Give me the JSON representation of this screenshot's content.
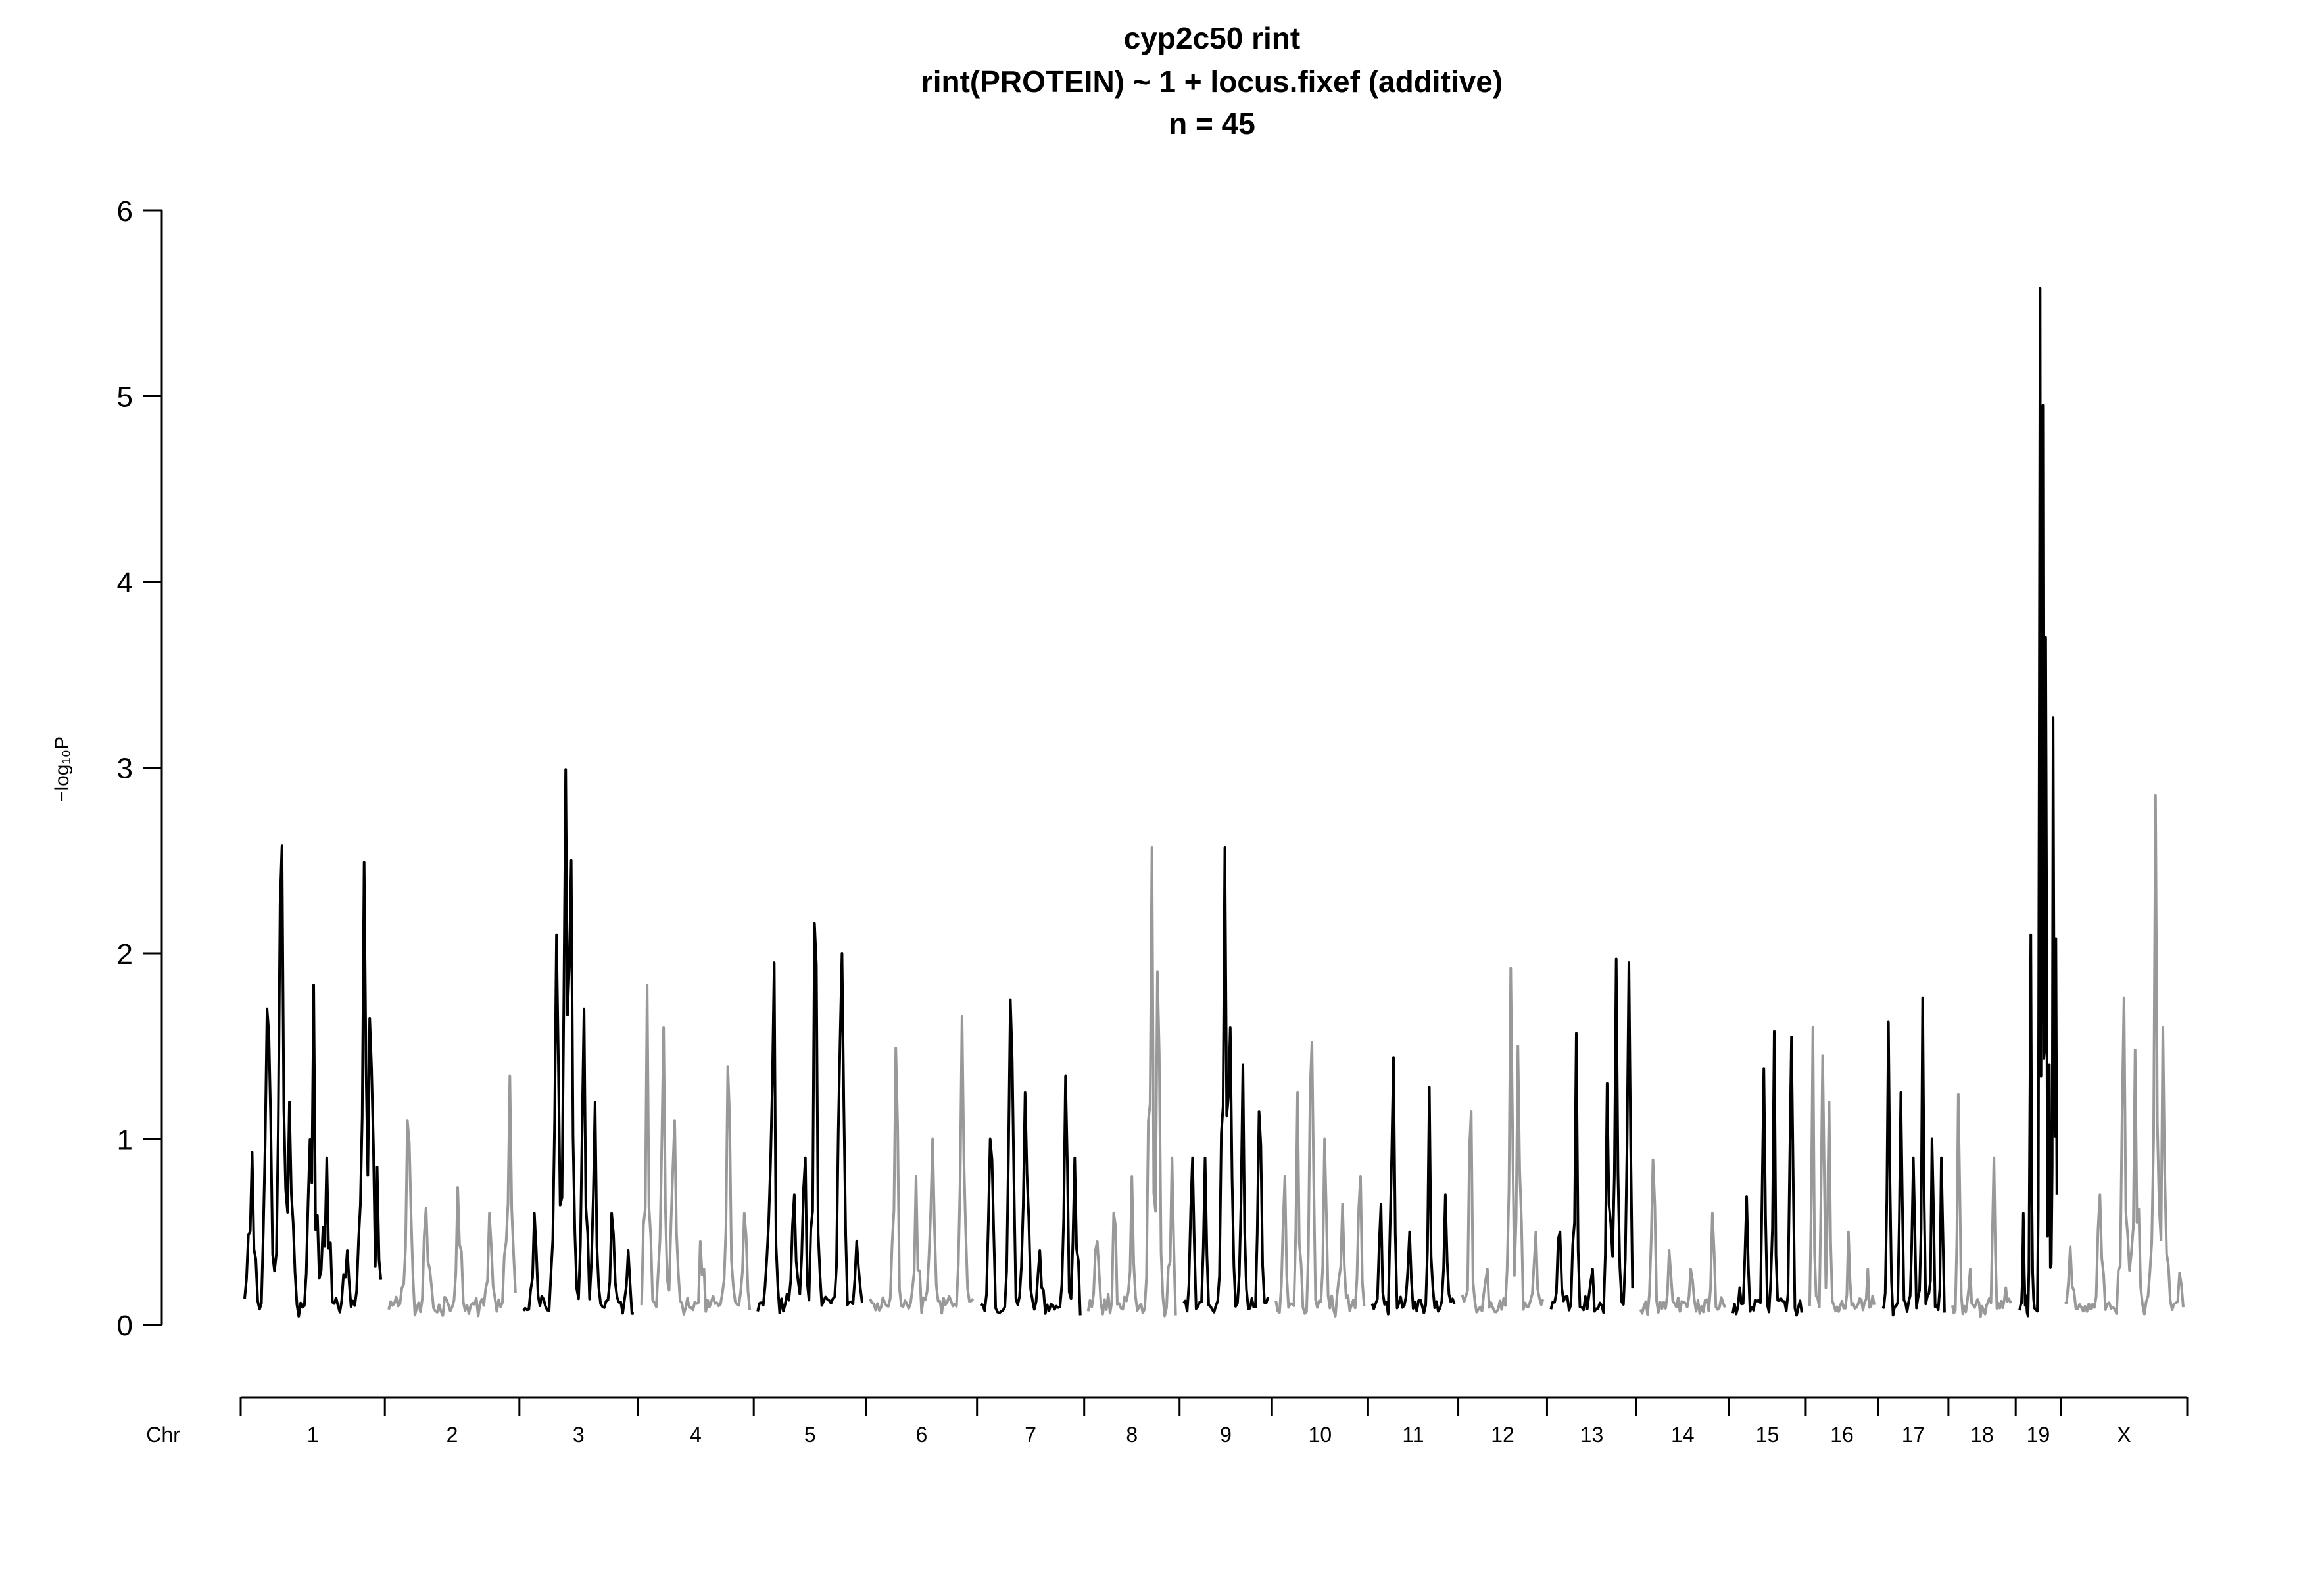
{
  "chart_data": {
    "type": "line",
    "title": "cyp2c50 rint",
    "subtitle": "rint(PROTEIN) ~ 1 + locus.fixef (additive)",
    "sample_label": "n = 45",
    "ylabel": "−log₁₀P",
    "xlabel": "Chr",
    "ylim": [
      0,
      6
    ],
    "yticks": [
      0,
      1,
      2,
      3,
      4,
      5,
      6
    ],
    "grid": false,
    "colors": {
      "odd": "#000000",
      "even": "#999999"
    },
    "chromosomes": [
      {
        "name": "1",
        "length": 195,
        "color": "black",
        "peaks": [
          [
            0.05,
            0.93
          ],
          [
            0.17,
            1.7
          ],
          [
            0.27,
            2.58
          ],
          [
            0.33,
            1.2
          ],
          [
            0.5,
            1.83
          ],
          [
            0.6,
            0.9
          ],
          [
            0.75,
            0.4
          ],
          [
            0.88,
            2.49
          ],
          [
            0.92,
            1.65
          ],
          [
            0.97,
            0.85
          ]
        ]
      },
      {
        "name": "2",
        "length": 182,
        "color": "gray",
        "peaks": [
          [
            0.15,
            1.1
          ],
          [
            0.3,
            0.63
          ],
          [
            0.55,
            0.74
          ],
          [
            0.8,
            0.6
          ],
          [
            0.95,
            1.34
          ]
        ]
      },
      {
        "name": "3",
        "length": 160,
        "color": "black",
        "peaks": [
          [
            0.1,
            0.6
          ],
          [
            0.3,
            2.1
          ],
          [
            0.38,
            2.99
          ],
          [
            0.43,
            2.5
          ],
          [
            0.55,
            1.7
          ],
          [
            0.65,
            1.2
          ],
          [
            0.8,
            0.6
          ],
          [
            0.95,
            0.4
          ]
        ]
      },
      {
        "name": "4",
        "length": 157,
        "color": "gray",
        "peaks": [
          [
            0.05,
            1.83
          ],
          [
            0.2,
            1.6
          ],
          [
            0.3,
            1.1
          ],
          [
            0.55,
            0.45
          ],
          [
            0.8,
            1.39
          ],
          [
            0.95,
            0.6
          ]
        ]
      },
      {
        "name": "5",
        "length": 152,
        "color": "black",
        "peaks": [
          [
            0.1,
            0.55
          ],
          [
            0.15,
            1.95
          ],
          [
            0.35,
            0.7
          ],
          [
            0.45,
            0.9
          ],
          [
            0.55,
            2.16
          ],
          [
            0.8,
            2.0
          ],
          [
            0.95,
            0.45
          ]
        ]
      },
      {
        "name": "6",
        "length": 150,
        "color": "gray",
        "peaks": [
          [
            0.25,
            1.49
          ],
          [
            0.45,
            0.8
          ],
          [
            0.6,
            1.0
          ],
          [
            0.9,
            1.66
          ]
        ]
      },
      {
        "name": "7",
        "length": 145,
        "color": "black",
        "peaks": [
          [
            0.1,
            1.0
          ],
          [
            0.3,
            1.75
          ],
          [
            0.45,
            1.25
          ],
          [
            0.6,
            0.4
          ],
          [
            0.85,
            1.34
          ],
          [
            0.95,
            0.9
          ]
        ]
      },
      {
        "name": "8",
        "length": 129,
        "color": "gray",
        "peaks": [
          [
            0.1,
            0.45
          ],
          [
            0.3,
            0.6
          ],
          [
            0.5,
            0.8
          ],
          [
            0.72,
            2.57
          ],
          [
            0.8,
            1.9
          ],
          [
            0.95,
            0.9
          ]
        ]
      },
      {
        "name": "9",
        "length": 125,
        "color": "black",
        "peaks": [
          [
            0.1,
            0.9
          ],
          [
            0.25,
            0.9
          ],
          [
            0.48,
            2.57
          ],
          [
            0.55,
            1.6
          ],
          [
            0.7,
            1.4
          ],
          [
            0.9,
            1.15
          ]
        ]
      },
      {
        "name": "10",
        "length": 130,
        "color": "gray",
        "peaks": [
          [
            0.1,
            0.8
          ],
          [
            0.25,
            1.25
          ],
          [
            0.4,
            1.52
          ],
          [
            0.55,
            1.0
          ],
          [
            0.75,
            0.65
          ],
          [
            0.95,
            0.8
          ]
        ]
      },
      {
        "name": "11",
        "length": 122,
        "color": "black",
        "peaks": [
          [
            0.1,
            0.65
          ],
          [
            0.25,
            1.44
          ],
          [
            0.45,
            0.5
          ],
          [
            0.7,
            1.28
          ],
          [
            0.9,
            0.7
          ]
        ]
      },
      {
        "name": "12",
        "length": 120,
        "color": "gray",
        "peaks": [
          [
            0.1,
            1.15
          ],
          [
            0.3,
            0.3
          ],
          [
            0.6,
            1.92
          ],
          [
            0.7,
            1.5
          ],
          [
            0.9,
            0.5
          ]
        ]
      },
      {
        "name": "13",
        "length": 121,
        "color": "black",
        "peaks": [
          [
            0.1,
            0.5
          ],
          [
            0.3,
            1.57
          ],
          [
            0.5,
            0.3
          ],
          [
            0.7,
            1.3
          ],
          [
            0.8,
            1.97
          ],
          [
            0.95,
            1.95
          ]
        ]
      },
      {
        "name": "14",
        "length": 125,
        "color": "gray",
        "peaks": [
          [
            0.15,
            0.89
          ],
          [
            0.35,
            0.4
          ],
          [
            0.6,
            0.3
          ],
          [
            0.85,
            0.6
          ]
        ]
      },
      {
        "name": "15",
        "length": 104,
        "color": "black",
        "peaks": [
          [
            0.1,
            0.2
          ],
          [
            0.2,
            0.69
          ],
          [
            0.45,
            1.38
          ],
          [
            0.6,
            1.58
          ],
          [
            0.85,
            1.55
          ]
        ]
      },
      {
        "name": "16",
        "length": 98,
        "color": "gray",
        "peaks": [
          [
            0.05,
            1.6
          ],
          [
            0.2,
            1.45
          ],
          [
            0.3,
            1.2
          ],
          [
            0.6,
            0.5
          ],
          [
            0.9,
            0.3
          ]
        ]
      },
      {
        "name": "17",
        "length": 95,
        "color": "black",
        "peaks": [
          [
            0.1,
            1.63
          ],
          [
            0.3,
            1.25
          ],
          [
            0.5,
            0.9
          ],
          [
            0.65,
            1.76
          ],
          [
            0.8,
            1.0
          ],
          [
            0.95,
            0.9
          ]
        ]
      },
      {
        "name": "18",
        "length": 91,
        "color": "gray",
        "peaks": [
          [
            0.1,
            1.24
          ],
          [
            0.3,
            0.3
          ],
          [
            0.7,
            0.9
          ],
          [
            0.9,
            0.2
          ]
        ]
      },
      {
        "name": "19",
        "length": 61,
        "color": "black",
        "peaks": [
          [
            0.1,
            0.6
          ],
          [
            0.3,
            2.1
          ],
          [
            0.55,
            5.58
          ],
          [
            0.62,
            4.95
          ],
          [
            0.7,
            3.7
          ],
          [
            0.8,
            1.4
          ],
          [
            0.9,
            3.27
          ],
          [
            0.97,
            2.08
          ]
        ]
      },
      {
        "name": "X",
        "length": 171,
        "color": "gray",
        "peaks": [
          [
            0.05,
            0.42
          ],
          [
            0.3,
            0.7
          ],
          [
            0.5,
            1.76
          ],
          [
            0.6,
            1.48
          ],
          [
            0.77,
            2.85
          ],
          [
            0.83,
            1.6
          ],
          [
            0.97,
            0.28
          ]
        ]
      }
    ]
  }
}
